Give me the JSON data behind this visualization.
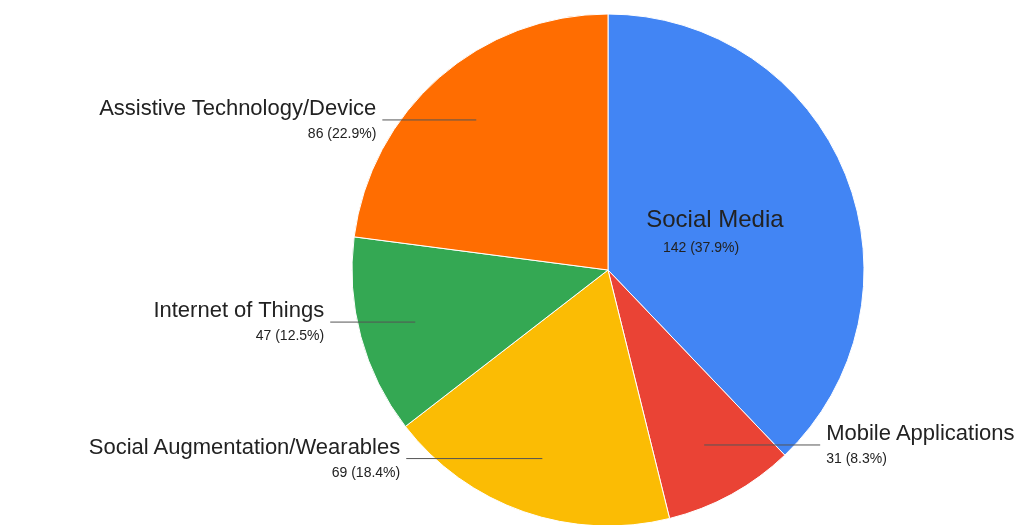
{
  "chart_data": {
    "type": "pie",
    "categories": [
      "Social Media",
      "Mobile Applications",
      "Social Augmentation/Wearables",
      "Internet of Things",
      "Assistive Technology/Device"
    ],
    "values": [
      142,
      31,
      69,
      47,
      86
    ],
    "colors": [
      "#4285f4",
      "#ea4335",
      "#fbbc04",
      "#34a853",
      "#ff6d01"
    ],
    "value_labels": [
      "142 (37.9%)",
      "31 (8.3%)",
      "69 (18.4%)",
      "47 (12.5%)",
      "86 (22.9%)"
    ],
    "legend": false
  }
}
